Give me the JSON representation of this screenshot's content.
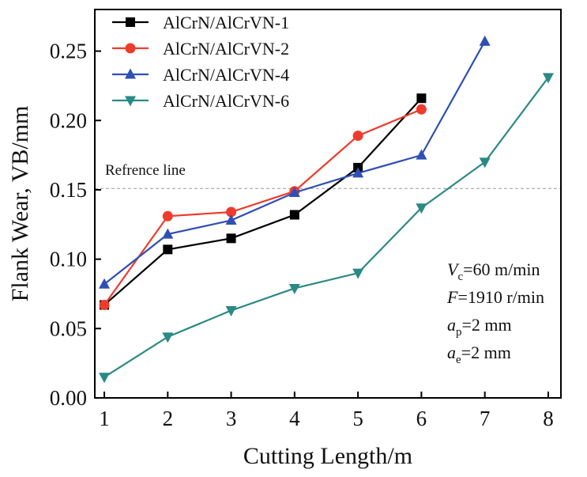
{
  "chart_data": {
    "type": "line",
    "xlabel": "Cutting Length/m",
    "ylabel": "Flank Wear, VB/mm",
    "xlim": [
      0.85,
      8.2
    ],
    "ylim": [
      0,
      0.28
    ],
    "x_ticks": [
      "1",
      "2",
      "3",
      "4",
      "5",
      "6",
      "7",
      "8"
    ],
    "y_ticks": [
      "0.00",
      "0.05",
      "0.10",
      "0.15",
      "0.20",
      "0.25"
    ],
    "grid": false,
    "legend_position": "top-left",
    "series": [
      {
        "name": "AlCrN/AlCrVN-1",
        "marker": "square",
        "color": "#000000",
        "x": [
          1,
          2,
          3,
          4,
          5,
          6
        ],
        "y": [
          0.067,
          0.107,
          0.115,
          0.132,
          0.166,
          0.216
        ]
      },
      {
        "name": "AlCrN/AlCrVN-2",
        "marker": "circle",
        "color": "#ef3b2c",
        "x": [
          1,
          2,
          3,
          4,
          5,
          6
        ],
        "y": [
          0.067,
          0.131,
          0.134,
          0.149,
          0.189,
          0.208
        ]
      },
      {
        "name": "AlCrN/AlCrVN-4",
        "marker": "triangle-up",
        "color": "#2f4fb5",
        "x": [
          1,
          2,
          3,
          4,
          5,
          6,
          7
        ],
        "y": [
          0.082,
          0.118,
          0.128,
          0.148,
          0.162,
          0.175,
          0.257
        ]
      },
      {
        "name": "AlCrN/AlCrVN-6",
        "marker": "triangle-down",
        "color": "#2a8a84",
        "x": [
          1,
          2,
          3,
          4,
          5,
          6,
          7,
          8
        ],
        "y": [
          0.015,
          0.044,
          0.063,
          0.079,
          0.09,
          0.137,
          0.17,
          0.231
        ]
      }
    ],
    "reference_line": {
      "label": "Refrence line",
      "y": 0.151,
      "color": "#999999",
      "style": "dashed"
    },
    "conditions": [
      {
        "symbol": "V",
        "subscript": "c",
        "text": "=60 m/min"
      },
      {
        "symbol": "F",
        "subscript": "",
        "text": "=1910 r/min"
      },
      {
        "symbol": "a",
        "subscript": "p",
        "text": "=2 mm"
      },
      {
        "symbol": "a",
        "subscript": "e",
        "text": "=2 mm"
      }
    ]
  }
}
